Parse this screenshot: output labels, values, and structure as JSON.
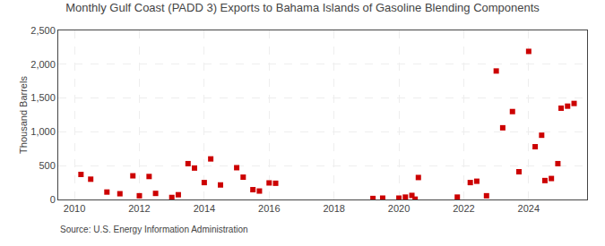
{
  "chart_data": {
    "type": "scatter",
    "title": "Monthly Gulf Coast (PADD 3) Exports to Bahama Islands of Gasoline Blending Components",
    "ylabel": "Thousand Barrels",
    "annotations": [
      "Source: U.S. Energy Information Administration"
    ],
    "color": "#cc0000",
    "marker": "square",
    "x": [
      2010.2,
      2010.5,
      2011.0,
      2011.4,
      2011.8,
      2012.0,
      2012.3,
      2012.5,
      2013.0,
      2013.2,
      2013.5,
      2013.7,
      2014.0,
      2014.2,
      2014.5,
      2015.0,
      2015.2,
      2015.5,
      2015.7,
      2016.0,
      2016.2,
      2019.2,
      2019.5,
      2020.0,
      2020.2,
      2020.4,
      2020.5,
      2020.6,
      2021.8,
      2022.2,
      2022.4,
      2022.7,
      2023.0,
      2023.2,
      2023.5,
      2023.7,
      2024.0,
      2024.2,
      2024.4,
      2024.5,
      2024.7,
      2024.9,
      2025.0,
      2025.2,
      2025.4
    ],
    "values": [
      370,
      300,
      110,
      85,
      350,
      55,
      340,
      90,
      30,
      70,
      530,
      465,
      250,
      600,
      215,
      470,
      330,
      145,
      125,
      245,
      240,
      15,
      20,
      20,
      35,
      60,
      5,
      325,
      35,
      250,
      270,
      55,
      1900,
      1060,
      1300,
      410,
      2190,
      780,
      950,
      280,
      310,
      530,
      1350,
      1380,
      1420
    ],
    "xlim": [
      2009.5,
      2025.8
    ],
    "xticks": [
      2010,
      2012,
      2014,
      2016,
      2018,
      2020,
      2022,
      2024
    ],
    "ylim": [
      0,
      2500
    ],
    "yticks": [
      0,
      500,
      {
        "value": 1000,
        "label": "1,000"
      },
      {
        "value": 1500,
        "label": "1,500"
      },
      {
        "value": 2000,
        "label": "2,000"
      },
      {
        "value": 2500,
        "label": "2,500"
      }
    ],
    "grid": true
  }
}
